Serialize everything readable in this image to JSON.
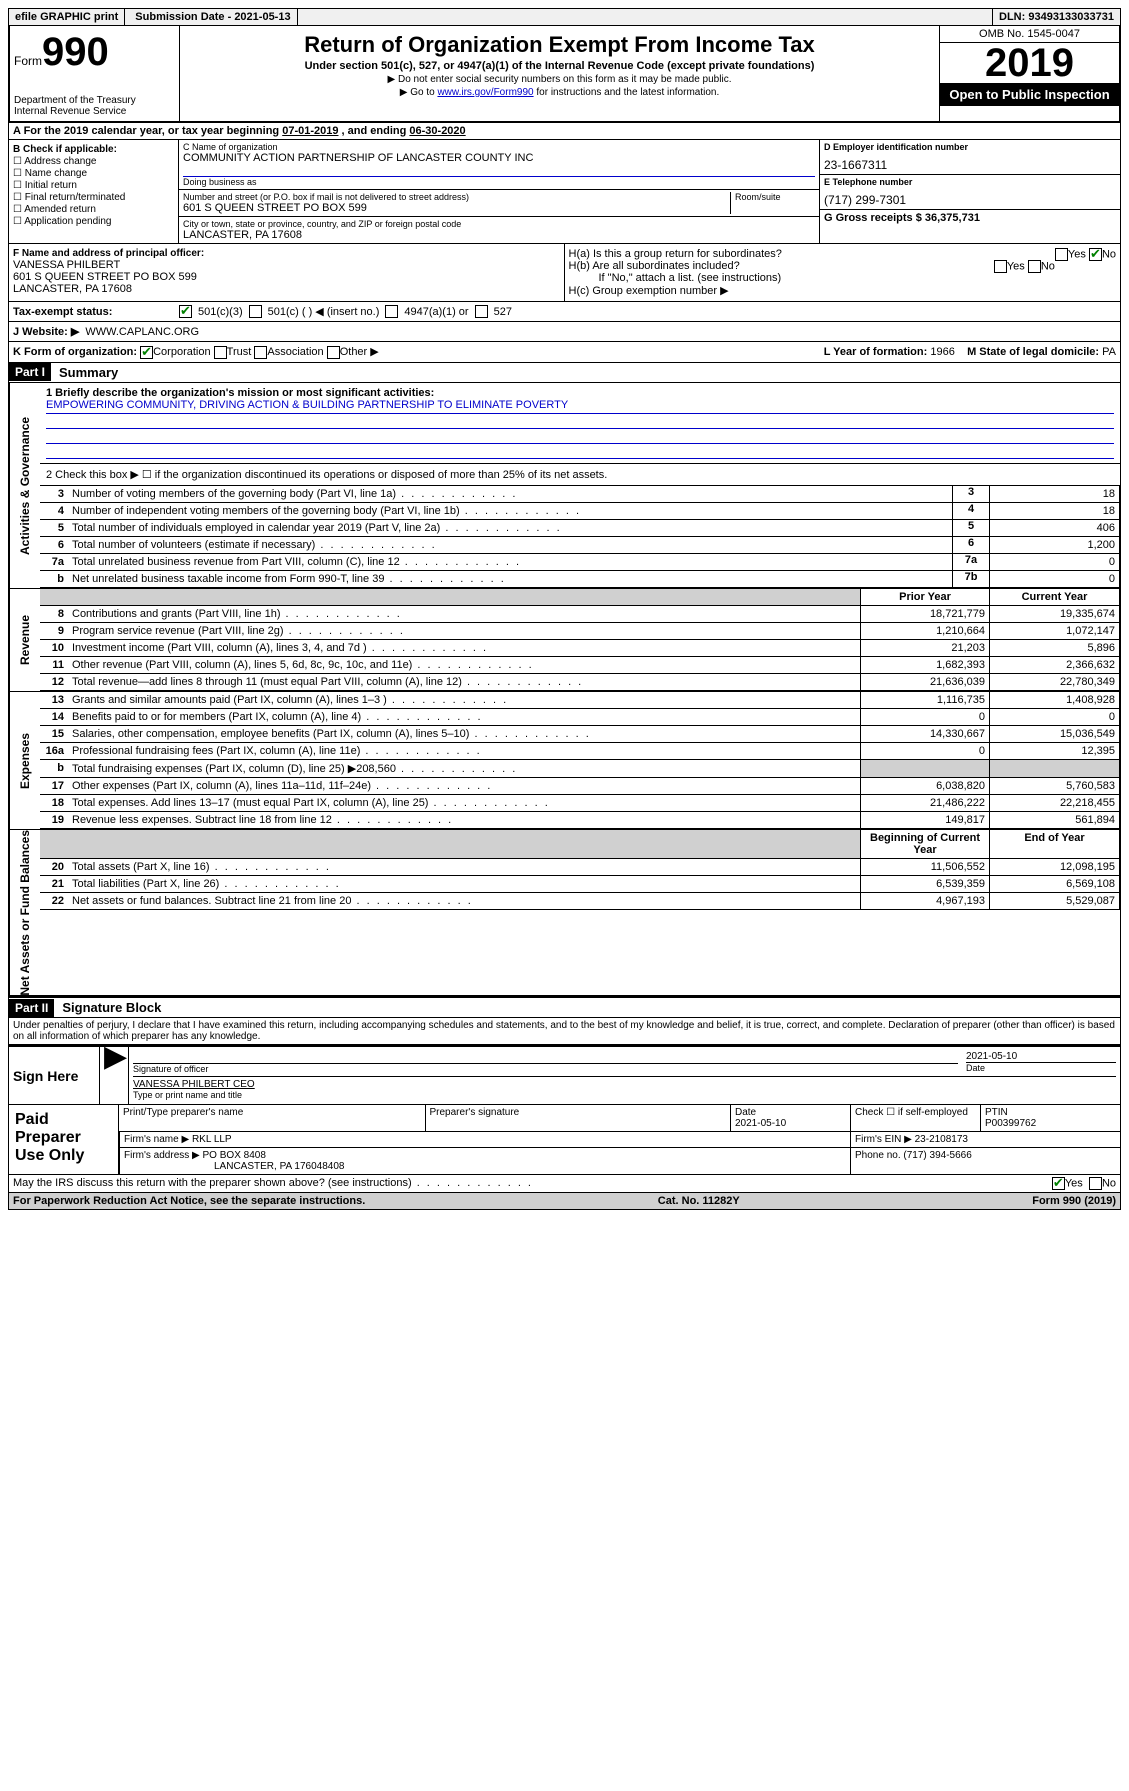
{
  "top_bar": {
    "efile": "efile GRAPHIC print",
    "submission_label": "Submission Date - 2021-05-13",
    "dln_label": "DLN: 93493133033731"
  },
  "header": {
    "form_label": "Form",
    "form_number": "990",
    "dept": "Department of the Treasury",
    "irs": "Internal Revenue Service",
    "title": "Return of Organization Exempt From Income Tax",
    "subtitle": "Under section 501(c), 527, or 4947(a)(1) of the Internal Revenue Code (except private foundations)",
    "note1": "▶ Do not enter social security numbers on this form as it may be made public.",
    "note2_pre": "▶ Go to ",
    "note2_link": "www.irs.gov/Form990",
    "note2_post": " for instructions and the latest information.",
    "omb": "OMB No. 1545-0047",
    "year": "2019",
    "open_public": "Open to Public Inspection"
  },
  "period": {
    "pre": "A For the 2019 calendar year, or tax year beginning ",
    "begin": "07-01-2019",
    "mid": " , and ending ",
    "end": "06-30-2020"
  },
  "section_b": {
    "header": "B Check if applicable:",
    "opt1": "Address change",
    "opt2": "Name change",
    "opt3": "Initial return",
    "opt4": "Final return/terminated",
    "opt5": "Amended return",
    "opt6": "Application pending"
  },
  "section_c": {
    "name_label": "C Name of organization",
    "name": "COMMUNITY ACTION PARTNERSHIP OF LANCASTER COUNTY INC",
    "dba_label": "Doing business as",
    "dba": "",
    "addr_label": "Number and street (or P.O. box if mail is not delivered to street address)",
    "room_label": "Room/suite",
    "addr": "601 S QUEEN STREET PO BOX 599",
    "city_label": "City or town, state or province, country, and ZIP or foreign postal code",
    "city": "LANCASTER, PA  17608"
  },
  "section_d": {
    "ein_label": "D Employer identification number",
    "ein": "23-1667311",
    "phone_label": "E Telephone number",
    "phone": "(717) 299-7301",
    "gross_label": "G Gross receipts $ 36,375,731"
  },
  "section_f": {
    "label": "F Name and address of principal officer:",
    "name": "VANESSA PHILBERT",
    "addr1": "601 S QUEEN STREET PO BOX 599",
    "addr2": "LANCASTER, PA  17608"
  },
  "section_h": {
    "ha": "H(a)  Is this a group return for subordinates?",
    "hb": "H(b)  Are all subordinates included?",
    "hb_note": "If \"No,\" attach a list. (see instructions)",
    "hc": "H(c)  Group exemption number ▶",
    "yes": "Yes",
    "no": "No"
  },
  "status_row": {
    "label": "Tax-exempt status:",
    "opt1": "501(c)(3)",
    "opt2": "501(c) (   ) ◀ (insert no.)",
    "opt3": "4947(a)(1) or",
    "opt4": "527"
  },
  "website_row": {
    "label": "J Website: ▶",
    "value": "WWW.CAPLANC.ORG"
  },
  "k_row": {
    "label": "K Form of organization:",
    "corp": "Corporation",
    "trust": "Trust",
    "assoc": "Association",
    "other": "Other ▶",
    "l_label": "L Year of formation: ",
    "l_val": "1966",
    "m_label": "M State of legal domicile: ",
    "m_val": "PA"
  },
  "part1": {
    "header": "Part I",
    "title": "Summary",
    "line1_label": "1  Briefly describe the organization's mission or most significant activities:",
    "line1_val": "EMPOWERING COMMUNITY, DRIVING ACTION & BUILDING PARTNERSHIP TO ELIMINATE POVERTY",
    "line2": "2   Check this box ▶ ☐  if the organization discontinued its operations or disposed of more than 25% of its net assets.",
    "vlabel_ag": "Activities & Governance",
    "vlabel_rev": "Revenue",
    "vlabel_exp": "Expenses",
    "vlabel_net": "Net Assets or Fund Balances",
    "prior_year": "Prior Year",
    "current_year": "Current Year",
    "boy": "Beginning of Current Year",
    "eoy": "End of Year",
    "rows_gov": [
      {
        "n": "3",
        "t": "Number of voting members of the governing body (Part VI, line 1a)",
        "b": "3",
        "v": "18"
      },
      {
        "n": "4",
        "t": "Number of independent voting members of the governing body (Part VI, line 1b)",
        "b": "4",
        "v": "18"
      },
      {
        "n": "5",
        "t": "Total number of individuals employed in calendar year 2019 (Part V, line 2a)",
        "b": "5",
        "v": "406"
      },
      {
        "n": "6",
        "t": "Total number of volunteers (estimate if necessary)",
        "b": "6",
        "v": "1,200"
      },
      {
        "n": "7a",
        "t": "Total unrelated business revenue from Part VIII, column (C), line 12",
        "b": "7a",
        "v": "0"
      },
      {
        "n": "b",
        "t": "Net unrelated business taxable income from Form 990-T, line 39",
        "b": "7b",
        "v": "0"
      }
    ],
    "rows_rev": [
      {
        "n": "8",
        "t": "Contributions and grants (Part VIII, line 1h)",
        "p": "18,721,779",
        "c": "19,335,674"
      },
      {
        "n": "9",
        "t": "Program service revenue (Part VIII, line 2g)",
        "p": "1,210,664",
        "c": "1,072,147"
      },
      {
        "n": "10",
        "t": "Investment income (Part VIII, column (A), lines 3, 4, and 7d )",
        "p": "21,203",
        "c": "5,896"
      },
      {
        "n": "11",
        "t": "Other revenue (Part VIII, column (A), lines 5, 6d, 8c, 9c, 10c, and 11e)",
        "p": "1,682,393",
        "c": "2,366,632"
      },
      {
        "n": "12",
        "t": "Total revenue—add lines 8 through 11 (must equal Part VIII, column (A), line 12)",
        "p": "21,636,039",
        "c": "22,780,349"
      }
    ],
    "rows_exp": [
      {
        "n": "13",
        "t": "Grants and similar amounts paid (Part IX, column (A), lines 1–3 )",
        "p": "1,116,735",
        "c": "1,408,928"
      },
      {
        "n": "14",
        "t": "Benefits paid to or for members (Part IX, column (A), line 4)",
        "p": "0",
        "c": "0"
      },
      {
        "n": "15",
        "t": "Salaries, other compensation, employee benefits (Part IX, column (A), lines 5–10)",
        "p": "14,330,667",
        "c": "15,036,549"
      },
      {
        "n": "16a",
        "t": "Professional fundraising fees (Part IX, column (A), line 11e)",
        "p": "0",
        "c": "12,395"
      },
      {
        "n": "b",
        "t": "Total fundraising expenses (Part IX, column (D), line 25) ▶208,560",
        "p": "",
        "c": "",
        "grey": true
      },
      {
        "n": "17",
        "t": "Other expenses (Part IX, column (A), lines 11a–11d, 11f–24e)",
        "p": "6,038,820",
        "c": "5,760,583"
      },
      {
        "n": "18",
        "t": "Total expenses. Add lines 13–17 (must equal Part IX, column (A), line 25)",
        "p": "21,486,222",
        "c": "22,218,455"
      },
      {
        "n": "19",
        "t": "Revenue less expenses. Subtract line 18 from line 12",
        "p": "149,817",
        "c": "561,894"
      }
    ],
    "rows_net": [
      {
        "n": "20",
        "t": "Total assets (Part X, line 16)",
        "p": "11,506,552",
        "c": "12,098,195"
      },
      {
        "n": "21",
        "t": "Total liabilities (Part X, line 26)",
        "p": "6,539,359",
        "c": "6,569,108"
      },
      {
        "n": "22",
        "t": "Net assets or fund balances. Subtract line 21 from line 20",
        "p": "4,967,193",
        "c": "5,529,087"
      }
    ]
  },
  "part2": {
    "header": "Part II",
    "title": "Signature Block",
    "perjury": "Under penalties of perjury, I declare that I have examined this return, including accompanying schedules and statements, and to the best of my knowledge and belief, it is true, correct, and complete. Declaration of preparer (other than officer) is based on all information of which preparer has any knowledge."
  },
  "sign": {
    "label": "Sign Here",
    "sig_label": "Signature of officer",
    "date": "2021-05-10",
    "date_label": "Date",
    "name": "VANESSA PHILBERT CEO",
    "name_label": "Type or print name and title"
  },
  "preparer": {
    "label": "Paid Preparer Use Only",
    "h1": "Print/Type preparer's name",
    "h2": "Preparer's signature",
    "h3": "Date",
    "h4": "Check ☐ if self-employed",
    "h5": "PTIN",
    "date": "2021-05-10",
    "ptin": "P00399762",
    "firm_name_label": "Firm's name    ▶",
    "firm_name": "RKL LLP",
    "firm_ein_label": "Firm's EIN ▶",
    "firm_ein": "23-2108173",
    "firm_addr_label": "Firm's address ▶",
    "firm_addr": "PO BOX 8408",
    "firm_city": "LANCASTER, PA  176048408",
    "phone_label": "Phone no.",
    "phone": "(717) 394-5666"
  },
  "footer": {
    "discuss": "May the IRS discuss this return with the preparer shown above? (see instructions)",
    "yes": "Yes",
    "no": "No",
    "paperwork": "For Paperwork Reduction Act Notice, see the separate instructions.",
    "cat": "Cat. No. 11282Y",
    "form": "Form 990 (2019)"
  }
}
